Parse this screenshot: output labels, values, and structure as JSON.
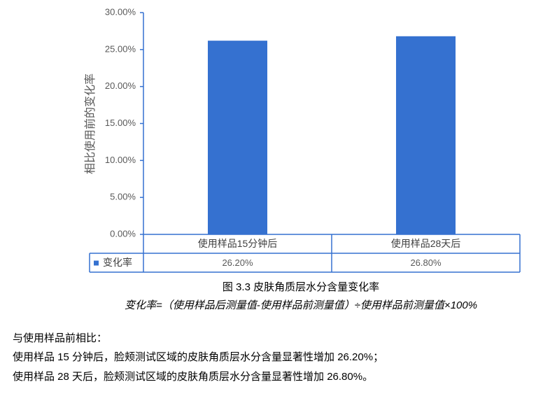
{
  "chart_data": {
    "type": "bar",
    "y_axis_label": "相比使用前的变化率",
    "categories": [
      "使用样品15分钟后",
      "使用样品28天后"
    ],
    "series": [
      {
        "name": "变化率",
        "color": "#3571d0",
        "values": [
          26.2,
          26.8
        ],
        "value_labels": [
          "26.20%",
          "26.80%"
        ]
      }
    ],
    "ylim": [
      0,
      30
    ],
    "yticks": [
      {
        "value": 0,
        "label": "0.00%"
      },
      {
        "value": 5,
        "label": "5.00%"
      },
      {
        "value": 10,
        "label": "10.00%"
      },
      {
        "value": 15,
        "label": "15.00%"
      },
      {
        "value": 20,
        "label": "20.00%"
      },
      {
        "value": 25,
        "label": "25.00%"
      },
      {
        "value": 30,
        "label": "30.00%"
      }
    ],
    "data_table": true
  },
  "caption": "图 3.3 皮肤角质层水分含量变化率",
  "formula": "变化率=（使用样品后测量值-使用样品前测量值）÷使用样品前测量值×100%",
  "paragraphs": [
    "与使用样品前相比：",
    "使用样品 15 分钟后，脸颊测试区域的皮肤角质层水分含量显著性增加 26.20%；",
    "使用样品 28 天后，脸颊测试区域的皮肤角质层水分含量显著性增加 26.80%。"
  ]
}
